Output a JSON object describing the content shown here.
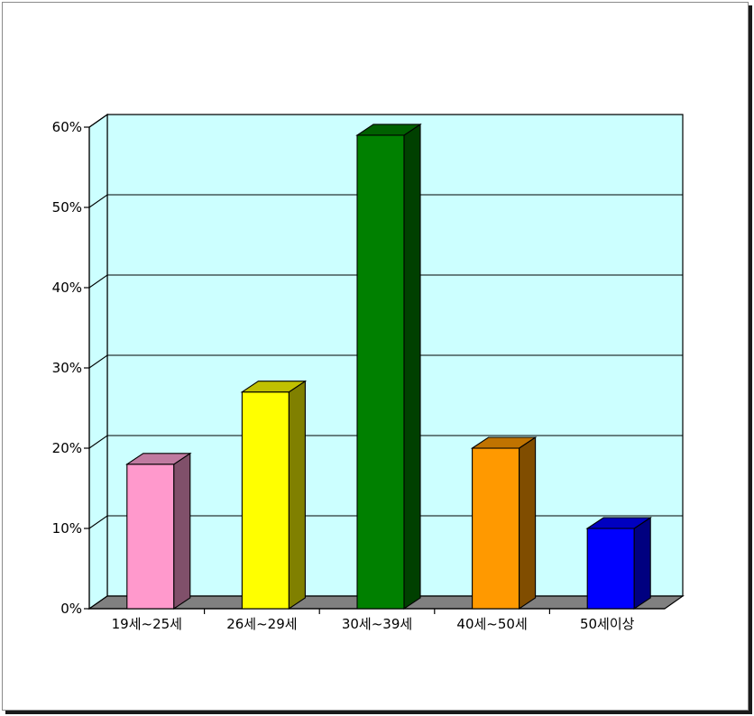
{
  "chart_data": {
    "type": "bar",
    "categories": [
      "19세~25세",
      "26세~29세",
      "30세~39세",
      "40세~50세",
      "50세이상"
    ],
    "values": [
      18,
      27,
      59,
      20,
      10
    ],
    "ylim": [
      0,
      60
    ],
    "yticks": [
      "0%",
      "10%",
      "20%",
      "30%",
      "40%",
      "50%",
      "60%"
    ],
    "grid": true,
    "title": "",
    "xlabel": "",
    "ylabel": "",
    "colors": {
      "plot_background": "#ccffff",
      "floor": "#808080",
      "bars": [
        {
          "front": "#ff99cc",
          "side": "#80506a",
          "top": "#c07aa0"
        },
        {
          "front": "#ffff00",
          "side": "#808000",
          "top": "#c0c000"
        },
        {
          "front": "#008000",
          "side": "#004000",
          "top": "#006000"
        },
        {
          "front": "#ff9900",
          "side": "#804d00",
          "top": "#c07300"
        },
        {
          "front": "#0000ff",
          "side": "#000080",
          "top": "#0000c0"
        }
      ]
    }
  }
}
